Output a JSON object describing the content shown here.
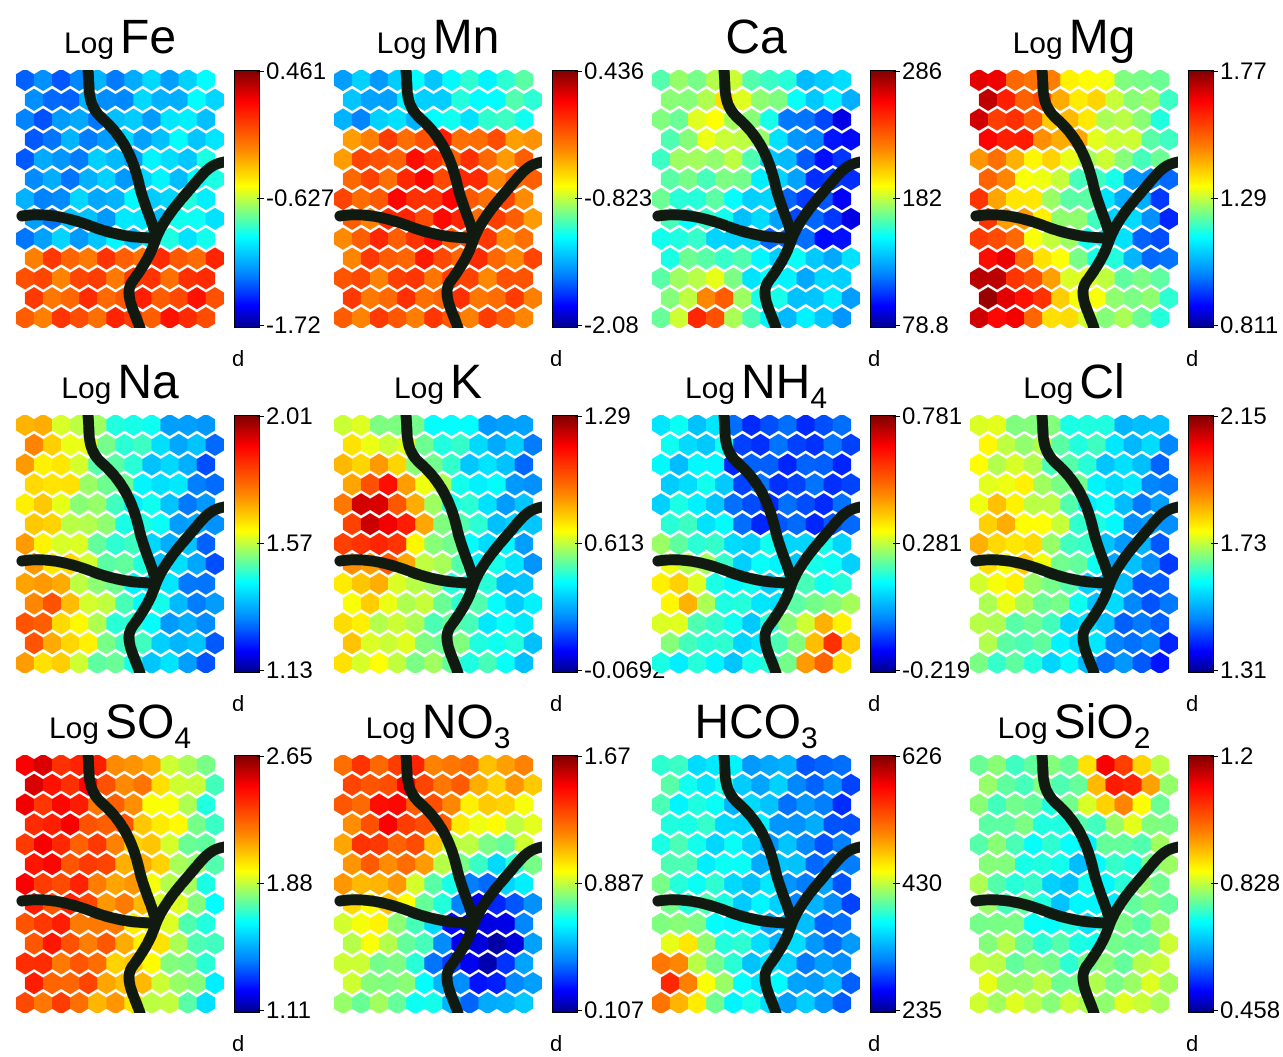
{
  "panels": [
    {
      "prefix": "Log",
      "name": "Fe",
      "sub": "",
      "ticks": [
        "0.461",
        "-0.627",
        "-1.72"
      ],
      "bottom_label": "d",
      "pattern": "fe"
    },
    {
      "prefix": "Log",
      "name": "Mn",
      "sub": "",
      "ticks": [
        "0.436",
        "-0.823",
        "-2.08"
      ],
      "bottom_label": "d",
      "pattern": "mn"
    },
    {
      "prefix": "",
      "name": "Ca",
      "sub": "",
      "ticks": [
        "286",
        "182",
        "78.8"
      ],
      "bottom_label": "d",
      "pattern": "ca"
    },
    {
      "prefix": "Log",
      "name": "Mg",
      "sub": "",
      "ticks": [
        "1.77",
        "1.29",
        "0.811"
      ],
      "bottom_label": "d",
      "pattern": "mg"
    },
    {
      "prefix": "Log",
      "name": "Na",
      "sub": "",
      "ticks": [
        "2.01",
        "1.57",
        "1.13"
      ],
      "bottom_label": "d",
      "pattern": "na"
    },
    {
      "prefix": "Log",
      "name": "K",
      "sub": "",
      "ticks": [
        "1.29",
        "0.613",
        "-0.0692"
      ],
      "bottom_label": "d",
      "pattern": "k"
    },
    {
      "prefix": "Log",
      "name": "NH",
      "sub": "4",
      "ticks": [
        "0.781",
        "0.281",
        "-0.219"
      ],
      "bottom_label": "d",
      "pattern": "nh4"
    },
    {
      "prefix": "Log",
      "name": "Cl",
      "sub": "",
      "ticks": [
        "2.15",
        "1.73",
        "1.31"
      ],
      "bottom_label": "d",
      "pattern": "cl"
    },
    {
      "prefix": "Log",
      "name": "SO",
      "sub": "4",
      "ticks": [
        "2.65",
        "1.88",
        "1.11"
      ],
      "bottom_label": "d",
      "pattern": "so4"
    },
    {
      "prefix": "Log",
      "name": "NO",
      "sub": "3",
      "ticks": [
        "1.67",
        "0.887",
        "0.107"
      ],
      "bottom_label": "d",
      "pattern": "no3"
    },
    {
      "prefix": "",
      "name": "HCO",
      "sub": "3",
      "ticks": [
        "626",
        "430",
        "235"
      ],
      "bottom_label": "d",
      "pattern": "hco3"
    },
    {
      "prefix": "Log",
      "name": "SiO",
      "sub": "2",
      "ticks": [
        "1.2",
        "0.828",
        "0.458"
      ],
      "bottom_label": "d",
      "pattern": "sio2"
    }
  ],
  "chart_data": {
    "type": "heatmap",
    "description_kind": "self-organizing map component planes",
    "grid": "hexagonal",
    "colormap": "jet",
    "cluster_boundaries": true,
    "components": [
      {
        "name": "Log Fe",
        "colorbar": [
          0.461,
          -0.627,
          -1.72
        ]
      },
      {
        "name": "Log Mn",
        "colorbar": [
          0.436,
          -0.823,
          -2.08
        ]
      },
      {
        "name": "Ca",
        "colorbar": [
          286,
          182,
          78.8
        ]
      },
      {
        "name": "Log Mg",
        "colorbar": [
          1.77,
          1.29,
          0.811
        ]
      },
      {
        "name": "Log Na",
        "colorbar": [
          2.01,
          1.57,
          1.13
        ]
      },
      {
        "name": "Log K",
        "colorbar": [
          1.29,
          0.613,
          -0.0692
        ]
      },
      {
        "name": "Log NH4",
        "colorbar": [
          0.781,
          0.281,
          -0.219
        ]
      },
      {
        "name": "Log Cl",
        "colorbar": [
          2.15,
          1.73,
          1.31
        ]
      },
      {
        "name": "Log SO4",
        "colorbar": [
          2.65,
          1.88,
          1.11
        ]
      },
      {
        "name": "Log NO3",
        "colorbar": [
          1.67,
          0.887,
          0.107
        ]
      },
      {
        "name": "HCO3",
        "colorbar": [
          626,
          430,
          235
        ]
      },
      {
        "name": "Log SiO2",
        "colorbar": [
          1.2,
          0.828,
          0.458
        ]
      }
    ]
  }
}
